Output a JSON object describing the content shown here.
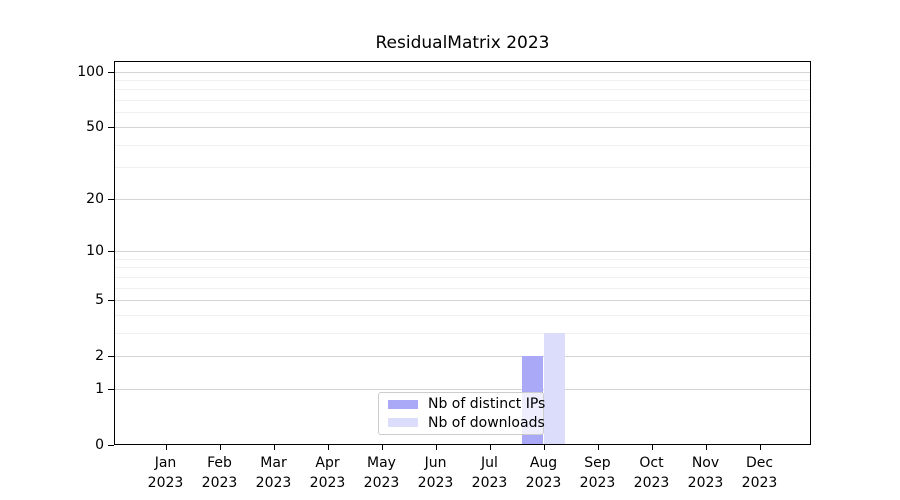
{
  "title": "ResidualMatrix 2023",
  "chart_data": {
    "type": "bar",
    "title": "ResidualMatrix 2023",
    "categories": [
      "Jan 2023",
      "Feb 2023",
      "Mar 2023",
      "Apr 2023",
      "May 2023",
      "Jun 2023",
      "Jul 2023",
      "Aug 2023",
      "Sep 2023",
      "Oct 2023",
      "Nov 2023",
      "Dec 2023"
    ],
    "series": [
      {
        "name": "Nb of distinct IPs",
        "color": "#a9a9f7",
        "values": [
          0,
          0,
          0,
          0,
          0,
          0,
          0,
          2,
          0,
          0,
          0,
          0
        ]
      },
      {
        "name": "Nb of downloads",
        "color": "#dcdcfb",
        "values": [
          0,
          0,
          0,
          0,
          0,
          0,
          0,
          3,
          0,
          0,
          0,
          0
        ]
      }
    ],
    "xlabel": "",
    "ylabel": "",
    "yscale": "log1p",
    "ylim": [
      0,
      114
    ],
    "yticks": [
      0,
      1,
      2,
      5,
      10,
      20,
      50,
      100
    ],
    "minor_gridlines": [
      3,
      4,
      6,
      7,
      8,
      9,
      30,
      40,
      60,
      70,
      80,
      90
    ],
    "grid": true,
    "legend_position": "lower center"
  },
  "colors": {
    "major_grid": "#d4d4d4",
    "minor_grid": "#f0f0f0",
    "spine": "#000000",
    "legend_border": "#cccccc"
  }
}
